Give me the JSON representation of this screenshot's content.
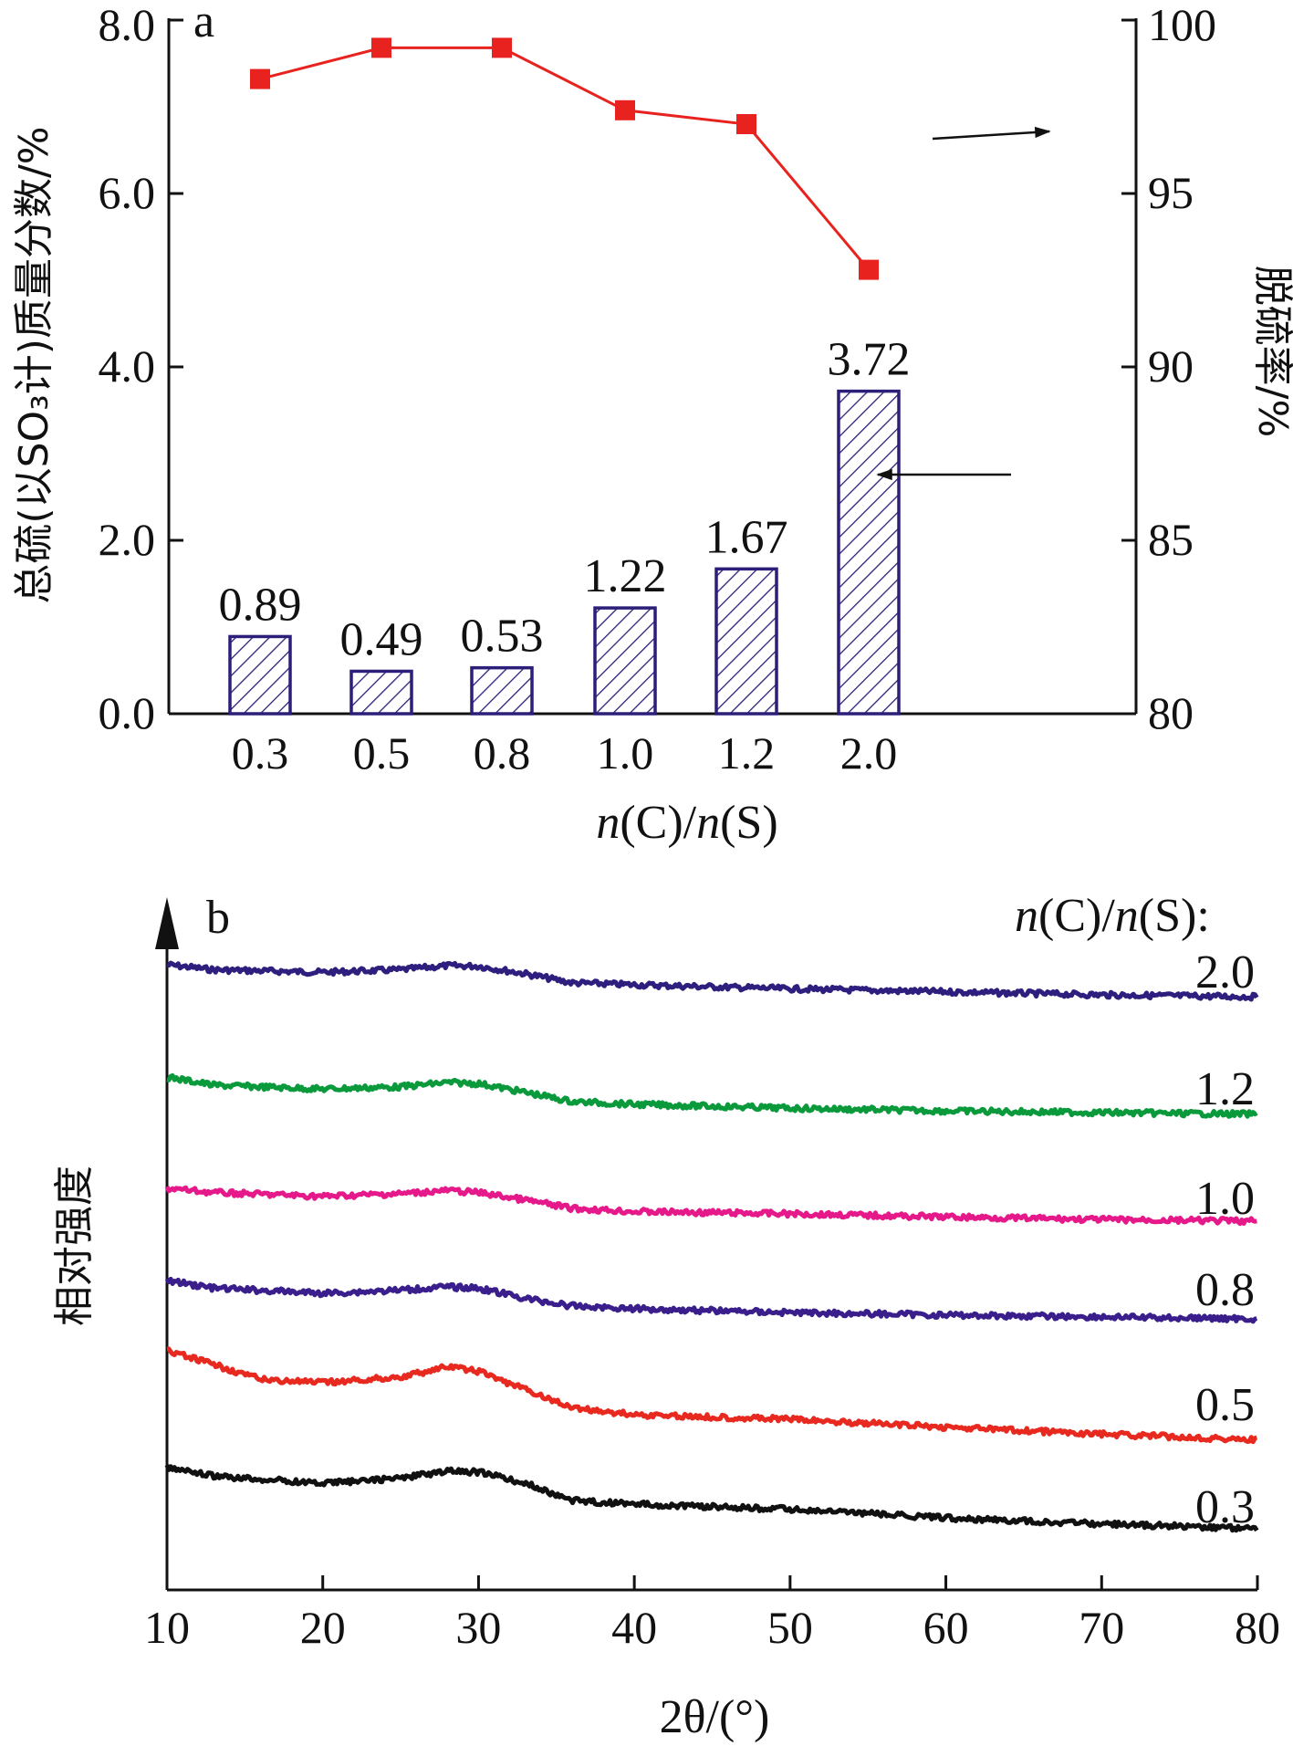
{
  "chart_data": [
    {
      "type": "bar",
      "panel_label": "a",
      "categories": [
        "0.3",
        "0.5",
        "0.8",
        "1.0",
        "1.2",
        "2.0"
      ],
      "xlabel_pre": "n",
      "xlabel_mid": "(C)/",
      "xlabel_n2": "n",
      "xlabel_post": "(S)",
      "ylabel_left": "总硫(以SO₃计)质量分数/%",
      "ylabel_right": "脱硫率/%",
      "ylim_left": [
        0,
        8
      ],
      "ylim_right": [
        80,
        100
      ],
      "yticks_left": [
        "0.0",
        "2.0",
        "4.0",
        "6.0",
        "8.0"
      ],
      "yticks_right": [
        "80",
        "85",
        "90",
        "95",
        "100"
      ],
      "series": [
        {
          "axis": "left",
          "kind": "bar",
          "values": [
            0.89,
            0.49,
            0.53,
            1.22,
            1.67,
            3.72
          ],
          "data_labels": [
            "0.89",
            "0.49",
            "0.53",
            "1.22",
            "1.67",
            "3.72"
          ],
          "color": "#2b1f7a"
        },
        {
          "axis": "right",
          "kind": "line",
          "values": [
            98.3,
            99.2,
            99.2,
            97.4,
            97.0,
            92.8
          ],
          "color": "#e8231f"
        }
      ]
    },
    {
      "type": "line",
      "panel_label": "b",
      "xlabel": "2θ/(°)",
      "ylabel": "相对强度",
      "xlim": [
        10,
        80
      ],
      "xticks": [
        "10",
        "20",
        "30",
        "40",
        "50",
        "60",
        "70",
        "80"
      ],
      "legend_title_pre": "n",
      "legend_title_mid": "(C)/",
      "legend_title_n2": "n",
      "legend_title_post": "(S):",
      "series": [
        {
          "name": "2.0",
          "color": "#2e1f7e",
          "x": [
            10,
            13,
            20,
            25,
            28,
            30,
            33,
            36,
            40,
            50,
            60,
            70,
            80
          ],
          "y": [
            1.0,
            0.9,
            0.85,
            0.9,
            0.98,
            0.97,
            0.82,
            0.64,
            0.6,
            0.52,
            0.46,
            0.4,
            0.36
          ]
        },
        {
          "name": "1.2",
          "color": "#0a9a3c",
          "x": [
            10,
            13,
            20,
            25,
            28,
            30,
            33,
            36,
            40,
            50,
            60,
            70,
            80
          ],
          "y": [
            1.0,
            0.85,
            0.78,
            0.82,
            0.9,
            0.88,
            0.72,
            0.55,
            0.5,
            0.43,
            0.38,
            0.35,
            0.32
          ]
        },
        {
          "name": "1.0",
          "color": "#e6198a",
          "x": [
            10,
            13,
            20,
            25,
            28,
            30,
            33,
            36,
            40,
            50,
            60,
            70,
            80
          ],
          "y": [
            1.0,
            0.92,
            0.85,
            0.9,
            0.96,
            0.92,
            0.78,
            0.62,
            0.56,
            0.52,
            0.46,
            0.41,
            0.38
          ]
        },
        {
          "name": "0.8",
          "color": "#3a1f8c",
          "x": [
            10,
            13,
            20,
            25,
            28,
            30,
            33,
            36,
            40,
            50,
            60,
            70,
            80
          ],
          "y": [
            1.0,
            0.88,
            0.8,
            0.85,
            0.9,
            0.88,
            0.72,
            0.6,
            0.56,
            0.5,
            0.46,
            0.43,
            0.4
          ]
        },
        {
          "name": "0.5",
          "color": "#e8291f",
          "x": [
            10,
            13,
            16,
            20,
            25,
            28,
            30,
            33,
            36,
            40,
            50,
            60,
            70,
            80
          ],
          "y": [
            1.0,
            0.88,
            0.75,
            0.72,
            0.77,
            0.86,
            0.82,
            0.66,
            0.5,
            0.44,
            0.4,
            0.33,
            0.27,
            0.22
          ]
        },
        {
          "name": "0.3",
          "color": "#111111",
          "x": [
            10,
            13,
            20,
            25,
            28,
            30,
            33,
            36,
            40,
            50,
            60,
            70,
            80
          ],
          "y": [
            1.0,
            0.9,
            0.82,
            0.88,
            0.96,
            0.95,
            0.82,
            0.62,
            0.58,
            0.52,
            0.42,
            0.35,
            0.3
          ]
        }
      ]
    }
  ]
}
